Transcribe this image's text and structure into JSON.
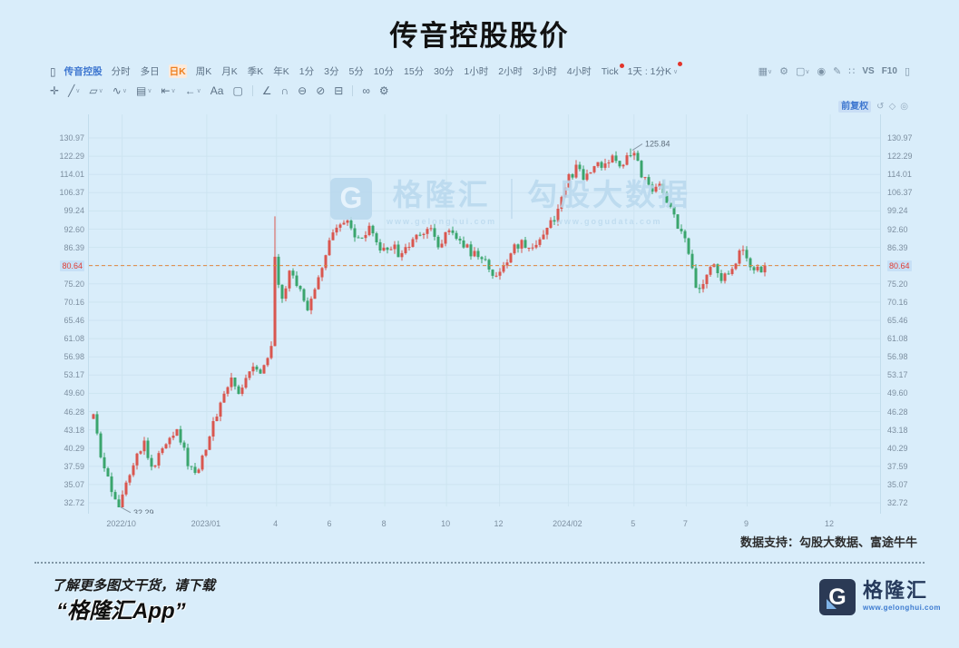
{
  "page": {
    "title": "传音控股股价"
  },
  "toolbar": {
    "stock_name": "传音控股",
    "periods": [
      "分时",
      "多日",
      "日K",
      "周K",
      "月K",
      "季K",
      "年K",
      "1分",
      "3分",
      "5分",
      "10分",
      "15分",
      "30分",
      "1小时",
      "2小时",
      "3小时",
      "4小时",
      "Tick"
    ],
    "active_period": "日K",
    "red_dot_periods": [
      "Tick"
    ],
    "cycle_selector": "1天 : 1分K",
    "cycle_has_red_dot": true,
    "right_icons": [
      {
        "name": "chart-style-icon",
        "glyph": "▦",
        "caret": true
      },
      {
        "name": "settings-icon",
        "glyph": "⚙"
      },
      {
        "name": "layout-icon",
        "glyph": "▢",
        "caret": true
      },
      {
        "name": "camera-icon",
        "glyph": "◉"
      },
      {
        "name": "pin-icon",
        "glyph": "✎"
      },
      {
        "name": "fullscreen-icon",
        "glyph": "∷"
      },
      {
        "name": "vs-button",
        "glyph": "VS",
        "text": true
      },
      {
        "name": "f10-button",
        "glyph": "F10",
        "text": true
      },
      {
        "name": "right-panel-icon",
        "glyph": "▯"
      }
    ]
  },
  "drawing_toolbar": {
    "tools": [
      {
        "name": "crosshair-tool",
        "glyph": "✛"
      },
      {
        "name": "trendline-tool",
        "glyph": "╱",
        "caret": true
      },
      {
        "name": "channel-tool",
        "glyph": "▱",
        "caret": true
      },
      {
        "name": "wave-tool",
        "glyph": "∿",
        "caret": true
      },
      {
        "name": "fib-tool",
        "glyph": "▤",
        "caret": true
      },
      {
        "name": "measure-tool",
        "glyph": "⇤",
        "caret": true
      },
      {
        "name": "arrow-tool",
        "glyph": "←",
        "caret": true
      },
      {
        "name": "text-tool",
        "glyph": "Aa"
      },
      {
        "name": "sticker-tool",
        "glyph": "▢"
      },
      {
        "sep": true
      },
      {
        "name": "angle-tool",
        "glyph": "∠"
      },
      {
        "name": "magnet-tool",
        "glyph": "∩"
      },
      {
        "name": "continuous-tool",
        "glyph": "⊖"
      },
      {
        "name": "visibility-tool",
        "glyph": "⊘"
      },
      {
        "name": "delete-tool",
        "glyph": "⊟"
      },
      {
        "sep": true
      },
      {
        "name": "link-tool",
        "glyph": "∞"
      },
      {
        "name": "tool-settings-icon",
        "glyph": "⚙"
      }
    ]
  },
  "chart": {
    "adjustment_mode": "前复权",
    "controls": [
      {
        "name": "restore-icon",
        "glyph": "↺"
      },
      {
        "name": "indicator-icon",
        "glyph": "◇"
      },
      {
        "name": "target-icon",
        "glyph": "◎"
      }
    ],
    "watermark": {
      "logo_letter": "G",
      "brand": "格隆汇",
      "brand_site": "www.gelonghui.com",
      "partner": "勾股大数据",
      "partner_site": "www.gogudata.com"
    }
  },
  "chart_data": {
    "type": "candlestick",
    "title": "传音控股股价",
    "y_axis": {
      "scale": "log",
      "ylim": [
        32.72,
        130.97
      ],
      "labels": [
        "130.97",
        "122.29",
        "114.01",
        "106.37",
        "99.24",
        "92.60",
        "86.39",
        "80.64",
        "75.20",
        "70.16",
        "65.46",
        "61.08",
        "56.98",
        "53.17",
        "49.60",
        "46.28",
        "43.18",
        "40.29",
        "37.59",
        "35.07",
        "32.72"
      ],
      "current_price_label": "80.64"
    },
    "x_axis": {
      "labels": [
        {
          "text": "2022/10",
          "pos": 0.042
        },
        {
          "text": "2023/01",
          "pos": 0.149
        },
        {
          "text": "4",
          "pos": 0.237
        },
        {
          "text": "6",
          "pos": 0.305
        },
        {
          "text": "8",
          "pos": 0.374
        },
        {
          "text": "10",
          "pos": 0.452
        },
        {
          "text": "12",
          "pos": 0.519
        },
        {
          "text": "2024/02",
          "pos": 0.606
        },
        {
          "text": "5",
          "pos": 0.689
        },
        {
          "text": "7",
          "pos": 0.755
        },
        {
          "text": "9",
          "pos": 0.832
        },
        {
          "text": "12",
          "pos": 0.937
        }
      ]
    },
    "high": 125.84,
    "high_label": "125.84",
    "low": 32.29,
    "low_label": "32.29",
    "last": 80.64,
    "bars": 186,
    "high_bar": 148,
    "low_bar": 7,
    "wick_highs": [
      [
        50,
        97.2
      ],
      [
        148,
        125.84
      ]
    ],
    "wick_lows": [
      [
        7,
        32.29
      ]
    ],
    "price_keyframes": [
      [
        0,
        45
      ],
      [
        2,
        39
      ],
      [
        4,
        35.5
      ],
      [
        7,
        32.6
      ],
      [
        10,
        37
      ],
      [
        12,
        40
      ],
      [
        14,
        41
      ],
      [
        16,
        37.2
      ],
      [
        19,
        40
      ],
      [
        21,
        42.5
      ],
      [
        23,
        43.5
      ],
      [
        26,
        38
      ],
      [
        28,
        36.5
      ],
      [
        31,
        40.5
      ],
      [
        34,
        46
      ],
      [
        36,
        50
      ],
      [
        38,
        52
      ],
      [
        40,
        49.5
      ],
      [
        42,
        53
      ],
      [
        44,
        56
      ],
      [
        46,
        53.5
      ],
      [
        48,
        57
      ],
      [
        49,
        60
      ],
      [
        50,
        82
      ],
      [
        51,
        74
      ],
      [
        52,
        70
      ],
      [
        54,
        79
      ],
      [
        56,
        75
      ],
      [
        57,
        73
      ],
      [
        59,
        68
      ],
      [
        62,
        78
      ],
      [
        65,
        88
      ],
      [
        67,
        92
      ],
      [
        70,
        95
      ],
      [
        73,
        88
      ],
      [
        76,
        92
      ],
      [
        79,
        85
      ],
      [
        82,
        87
      ],
      [
        85,
        83
      ],
      [
        88,
        90
      ],
      [
        92,
        93
      ],
      [
        95,
        88
      ],
      [
        98,
        92
      ],
      [
        101,
        89
      ],
      [
        104,
        85
      ],
      [
        107,
        82
      ],
      [
        110,
        79
      ],
      [
        112,
        77.5
      ],
      [
        115,
        85
      ],
      [
        118,
        88
      ],
      [
        121,
        86
      ],
      [
        124,
        92
      ],
      [
        127,
        97
      ],
      [
        129,
        104
      ],
      [
        131,
        112
      ],
      [
        133,
        117
      ],
      [
        135,
        112
      ],
      [
        137,
        116
      ],
      [
        139,
        120
      ],
      [
        141,
        117
      ],
      [
        143,
        121
      ],
      [
        145,
        118
      ],
      [
        147,
        123
      ],
      [
        148,
        124.8
      ],
      [
        150,
        118
      ],
      [
        152,
        112
      ],
      [
        154,
        108
      ],
      [
        156,
        111
      ],
      [
        158,
        103
      ],
      [
        160,
        97
      ],
      [
        162,
        92
      ],
      [
        164,
        85
      ],
      [
        166,
        72.8
      ],
      [
        168,
        74
      ],
      [
        170,
        80
      ],
      [
        171,
        82
      ],
      [
        173,
        76.5
      ],
      [
        175,
        78
      ],
      [
        178,
        85
      ],
      [
        180,
        83
      ],
      [
        182,
        78.5
      ],
      [
        184,
        79.5
      ],
      [
        185,
        80.64
      ]
    ],
    "colors": {
      "up": "#d9564f",
      "down": "#3aa56d",
      "current_line": "#e0873f",
      "grid": "#cde4f1",
      "current_badge_bg": "#c6e0f6",
      "current_badge_text": "#e03c34"
    },
    "legend": "none",
    "grid": "on"
  },
  "footer": {
    "data_support": "数据支持：勾股大数据、富途牛牛",
    "promo_line1": "了解更多图文干货，请下载",
    "promo_line2": "“格隆汇App”",
    "logo_letter": "G",
    "logo_text": "格隆汇",
    "logo_site": "www.gelonghui.com"
  }
}
